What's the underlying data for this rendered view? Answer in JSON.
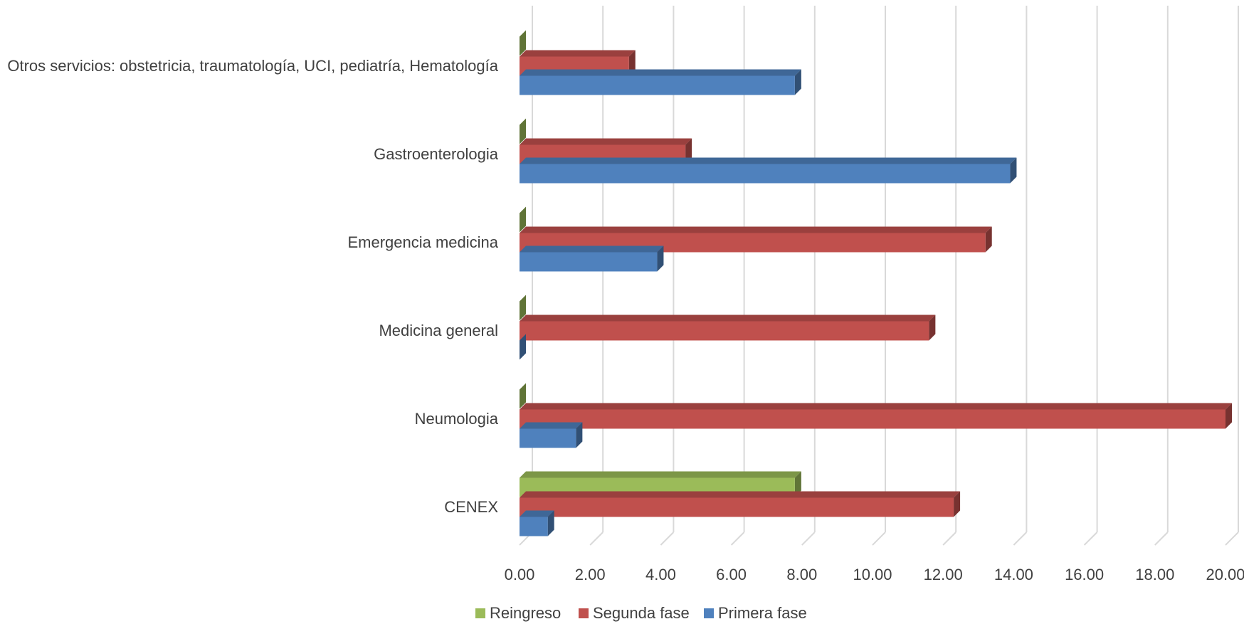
{
  "chart_data": {
    "type": "bar",
    "orientation": "horizontal",
    "style": "3d",
    "categories": [
      "CENEX",
      "Neumologia",
      "Medicina general",
      "Emergencia medicina",
      "Gastroenterologia",
      "Otros servicios: obstetricia, traumatología, UCI, pediatría, Hematología"
    ],
    "series": [
      {
        "name": "Primera fase",
        "color": "#4F81BD",
        "values": [
          0.8,
          1.6,
          0.0,
          3.9,
          13.9,
          7.8
        ]
      },
      {
        "name": "Segunda fase",
        "color": "#C0504D",
        "values": [
          12.3,
          20.0,
          11.6,
          13.2,
          4.7,
          3.1
        ]
      },
      {
        "name": "Reingreso",
        "color": "#9BBB59",
        "values": [
          7.8,
          0.0,
          0.0,
          0.0,
          0.0,
          0.0
        ]
      }
    ],
    "xlim": [
      0,
      20
    ],
    "xticks": [
      "0.00",
      "2.00",
      "4.00",
      "6.00",
      "8.00",
      "10.00",
      "12.00",
      "14.00",
      "16.00",
      "18.00",
      "20.00"
    ],
    "legend": {
      "position": "bottom",
      "order": [
        "Reingreso",
        "Segunda fase",
        "Primera fase"
      ]
    },
    "grid": true,
    "title": "",
    "xlabel": "",
    "ylabel": ""
  }
}
